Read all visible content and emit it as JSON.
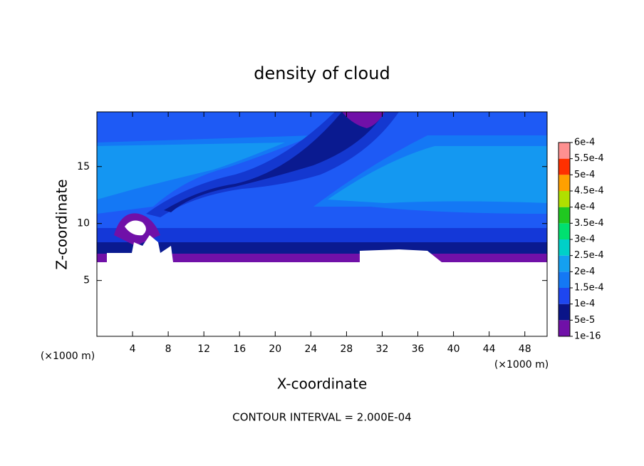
{
  "chart_data": {
    "type": "contour",
    "title": "density of cloud",
    "xlabel": "X-coordinate",
    "ylabel": "Z-coordinate",
    "x_unit": "(×1000 m)",
    "y_unit": "(×1000 m)",
    "annotation": "CONTOUR INTERVAL = 2.000E-04",
    "xlim": [
      0,
      50.5
    ],
    "ylim": [
      0.1,
      19.8
    ],
    "xticks": [
      4,
      8,
      12,
      16,
      20,
      24,
      28,
      32,
      36,
      40,
      44,
      48
    ],
    "yticks": [
      5,
      10,
      15
    ],
    "colorbar": {
      "ticks": [
        {
          "value": 1e-16,
          "label": "1e-16"
        },
        {
          "value": 5e-05,
          "label": "5e-5"
        },
        {
          "value": 0.0001,
          "label": "1e-4"
        },
        {
          "value": 0.00015,
          "label": "1.5e-4"
        },
        {
          "value": 0.0002,
          "label": "2e-4"
        },
        {
          "value": 0.00025,
          "label": "2.5e-4"
        },
        {
          "value": 0.0003,
          "label": "3e-4"
        },
        {
          "value": 0.00035,
          "label": "3.5e-4"
        },
        {
          "value": 0.0004,
          "label": "4e-4"
        },
        {
          "value": 0.00045,
          "label": "4.5e-4"
        },
        {
          "value": 0.0005,
          "label": "5e-4"
        },
        {
          "value": 0.00055,
          "label": "5.5e-4"
        },
        {
          "value": 0.0006,
          "label": "6e-4"
        }
      ],
      "colors": [
        "#7010a8",
        "#0a1488",
        "#1e46f0",
        "#1478f5",
        "#14a0f0",
        "#00d0c8",
        "#00e070",
        "#20c820",
        "#b0e000",
        "#ffa000",
        "#ff3000",
        "#ff9090"
      ]
    }
  }
}
